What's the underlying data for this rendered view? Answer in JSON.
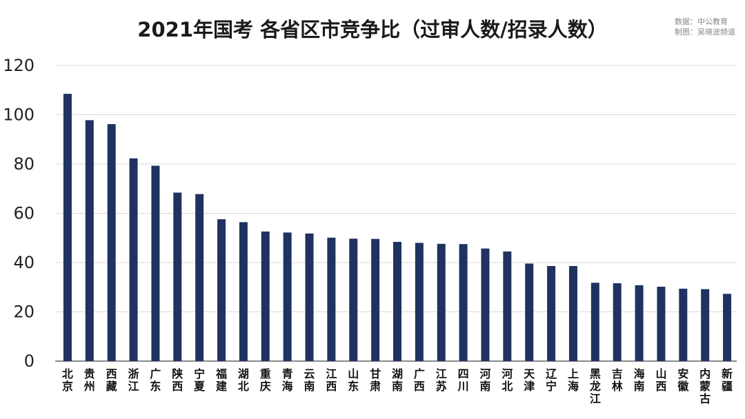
{
  "header": {
    "title": "2021年国考 各省区市竞争比（过审人数/招录人数）",
    "source_line1": "数据：中公教育",
    "source_line2": "制图：吴晓波频道"
  },
  "colors": {
    "bar": "#1f3260",
    "grid": "#d9d9d9",
    "axis": "#444444"
  },
  "chart_data": {
    "type": "bar",
    "title": "2021年国考 各省区市竞争比（过审人数/招录人数）",
    "xlabel": "",
    "ylabel": "",
    "ylim": [
      0,
      120
    ],
    "yticks": [
      0,
      20,
      40,
      60,
      80,
      100,
      120
    ],
    "grid": true,
    "categories": [
      "北京",
      "贵州",
      "西藏",
      "浙江",
      "广东",
      "陕西",
      "宁夏",
      "福建",
      "湖北",
      "重庆",
      "青海",
      "云南",
      "江西",
      "山东",
      "甘肃",
      "湖南",
      "广西",
      "江苏",
      "四川",
      "河南",
      "河北",
      "天津",
      "辽宁",
      "上海",
      "黑龙江",
      "吉林",
      "海南",
      "山西",
      "安徽",
      "内蒙古",
      "新疆"
    ],
    "values": [
      108.5,
      97.8,
      96.2,
      82.3,
      79.3,
      68.4,
      67.8,
      57.6,
      56.4,
      52.6,
      52.2,
      51.8,
      50.1,
      49.7,
      49.6,
      48.4,
      48.0,
      47.6,
      47.5,
      45.7,
      44.5,
      39.6,
      38.6,
      38.6,
      31.8,
      31.6,
      30.8,
      30.2,
      29.4,
      29.2,
      27.3
    ]
  }
}
